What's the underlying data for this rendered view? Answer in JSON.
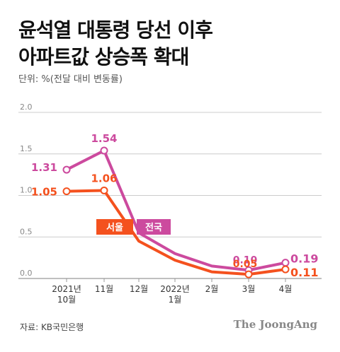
{
  "title_lines": [
    "윤석열 대통령 당선 이후",
    "아파트값 상승폭 확대"
  ],
  "subtitle": "단위: %(전달 대비 변동률)",
  "source": "자료: KB국민은행",
  "brand": "The JoongAng",
  "colors": {
    "seoul": "#f4511e",
    "nationwide": "#cc4a9e",
    "grid": "#cccccc",
    "axis": "#999999"
  },
  "chart_data": {
    "type": "line",
    "categories": [
      "2021년\n10월",
      "11월",
      "12월",
      "2022년\n1월",
      "2월",
      "3월",
      "4월"
    ],
    "ylim": [
      0,
      2.0
    ],
    "yticks": [
      "2.0",
      "1.5",
      "1.0",
      "0.5",
      "0.0"
    ],
    "grid": true,
    "series": [
      {
        "name": "전국",
        "color": "#cc4a9e",
        "values": [
          1.31,
          1.54,
          0.55,
          0.3,
          0.15,
          0.1,
          0.19
        ],
        "labels": [
          "1.31",
          "1.54",
          "",
          "",
          "",
          "0.10",
          "0.19"
        ]
      },
      {
        "name": "서울",
        "color": "#f4511e",
        "values": [
          1.05,
          1.06,
          0.45,
          0.22,
          0.08,
          0.05,
          0.11
        ],
        "labels": [
          "1.05",
          "1.06",
          "",
          "",
          "",
          "0.05",
          "0.11"
        ]
      }
    ]
  }
}
